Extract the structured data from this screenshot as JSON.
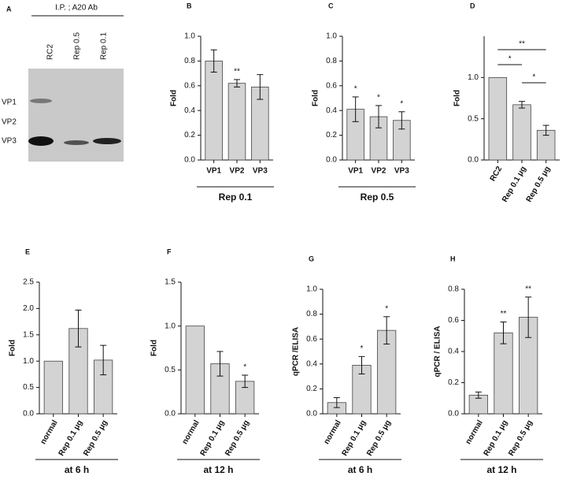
{
  "blot": {
    "panel": "A",
    "header": "I.P. ; A20 Ab",
    "lanes": [
      "RC2",
      "Rep 0.5",
      "Rep 0.1"
    ],
    "bands": [
      "VP1",
      "VP2",
      "VP3"
    ]
  },
  "chart_data": [
    {
      "type": "bar",
      "panel": "B",
      "ylabel": "Fold",
      "group_label": "Rep 0.1",
      "categories": [
        "VP1",
        "VP2",
        "VP3"
      ],
      "values": [
        0.8,
        0.62,
        0.59
      ],
      "errors": [
        0.09,
        0.03,
        0.1
      ],
      "annotations": [
        null,
        "**",
        null
      ],
      "color": "#d3d3d3",
      "ylim": [
        0,
        1
      ],
      "yticks": [
        {
          "value": 0,
          "label": "0.0"
        },
        0.2,
        0.4,
        0.6,
        0.8,
        {
          "value": 1,
          "label": "1.0"
        }
      ],
      "xtick_rotation": 0
    },
    {
      "type": "bar",
      "panel": "C",
      "ylabel": "Fold",
      "group_label": "Rep 0.5",
      "categories": [
        "VP1",
        "VP2",
        "VP3"
      ],
      "values": [
        0.41,
        0.35,
        0.32
      ],
      "errors": [
        0.1,
        0.09,
        0.07
      ],
      "annotations": [
        "*",
        "*",
        "*"
      ],
      "color": "#d3d3d3",
      "ylim": [
        0,
        1
      ],
      "yticks": [
        {
          "value": 0,
          "label": "0.0"
        },
        0.2,
        0.4,
        0.6,
        0.8,
        {
          "value": 1,
          "label": "1.0"
        }
      ],
      "xtick_rotation": 0
    },
    {
      "type": "bar",
      "panel": "D",
      "ylabel": "Fold",
      "categories": [
        "RC2",
        "Rep 0.1 μg",
        "Rep 0.5 μg"
      ],
      "values": [
        1,
        0.67,
        0.36
      ],
      "errors": [
        0,
        0.04,
        0.06
      ],
      "annotations": [
        null,
        null,
        null
      ],
      "brackets": [
        {
          "from": 0,
          "to": 2,
          "label": "**"
        },
        {
          "from": 0,
          "to": 1,
          "label": "*"
        },
        {
          "from": 1,
          "to": 2,
          "label": "*"
        }
      ],
      "color": "#d3d3d3",
      "ylim": [
        0,
        1.5
      ],
      "yticks": [
        {
          "value": 0,
          "label": "0.0"
        },
        0.5,
        {
          "value": 1,
          "label": "1.0"
        }
      ],
      "xtick_rotation": -60
    },
    {
      "type": "bar",
      "panel": "E",
      "ylabel": "Fold",
      "group_label": "at 6 h",
      "categories": [
        "normal",
        "Rep 0.1 μg",
        "Rep 0.5 μg"
      ],
      "values": [
        1,
        1.62,
        1.02
      ],
      "errors": [
        0,
        0.35,
        0.28
      ],
      "annotations": [
        null,
        null,
        null
      ],
      "color": "#d3d3d3",
      "ylim": [
        0,
        2.5
      ],
      "yticks": [
        {
          "value": 0,
          "label": "0.0"
        },
        0.5,
        {
          "value": 1,
          "label": "1.0"
        },
        1.5,
        {
          "value": 2,
          "label": "2.0"
        },
        2.5
      ],
      "xtick_rotation": -60
    },
    {
      "type": "bar",
      "panel": "F",
      "ylabel": "Fold",
      "group_label": "at 12 h",
      "categories": [
        "normal",
        "Rep 0.1 μg",
        "Rep 0.5 μg"
      ],
      "values": [
        1,
        0.57,
        0.37
      ],
      "errors": [
        0,
        0.14,
        0.07
      ],
      "annotations": [
        null,
        null,
        "*"
      ],
      "color": "#d3d3d3",
      "ylim": [
        0,
        1.5
      ],
      "yticks": [
        {
          "value": 0,
          "label": "0.0"
        },
        0.5,
        {
          "value": 1,
          "label": "1.0"
        },
        1.5
      ],
      "xtick_rotation": -60
    },
    {
      "type": "bar",
      "panel": "G",
      "ylabel": "qPCR /ELISA",
      "group_label": "at 6 h",
      "categories": [
        "normal",
        "Rep 0.1 μg",
        "Rep 0.5 μg"
      ],
      "values": [
        0.09,
        0.39,
        0.67
      ],
      "errors": [
        0.04,
        0.07,
        0.11
      ],
      "annotations": [
        null,
        "*",
        "*"
      ],
      "color": "#d3d3d3",
      "ylim": [
        0,
        1
      ],
      "yticks": [
        {
          "value": 0,
          "label": "0.0"
        },
        0.2,
        0.4,
        0.6,
        0.8,
        {
          "value": 1,
          "label": "1.0"
        }
      ],
      "xtick_rotation": -60
    },
    {
      "type": "bar",
      "panel": "H",
      "ylabel": "qPCR / ELISA",
      "group_label": "at 12 h",
      "categories": [
        "normal",
        "Rep 0.1 μg",
        "Rep 0.5 μg"
      ],
      "values": [
        0.12,
        0.52,
        0.62
      ],
      "errors": [
        0.02,
        0.07,
        0.13
      ],
      "annotations": [
        null,
        "**",
        "**"
      ],
      "color": "#d3d3d3",
      "ylim": [
        0,
        0.8
      ],
      "yticks": [
        {
          "value": 0,
          "label": "0.0"
        },
        0.2,
        0.4,
        0.6,
        0.8
      ],
      "xtick_rotation": -60
    }
  ]
}
